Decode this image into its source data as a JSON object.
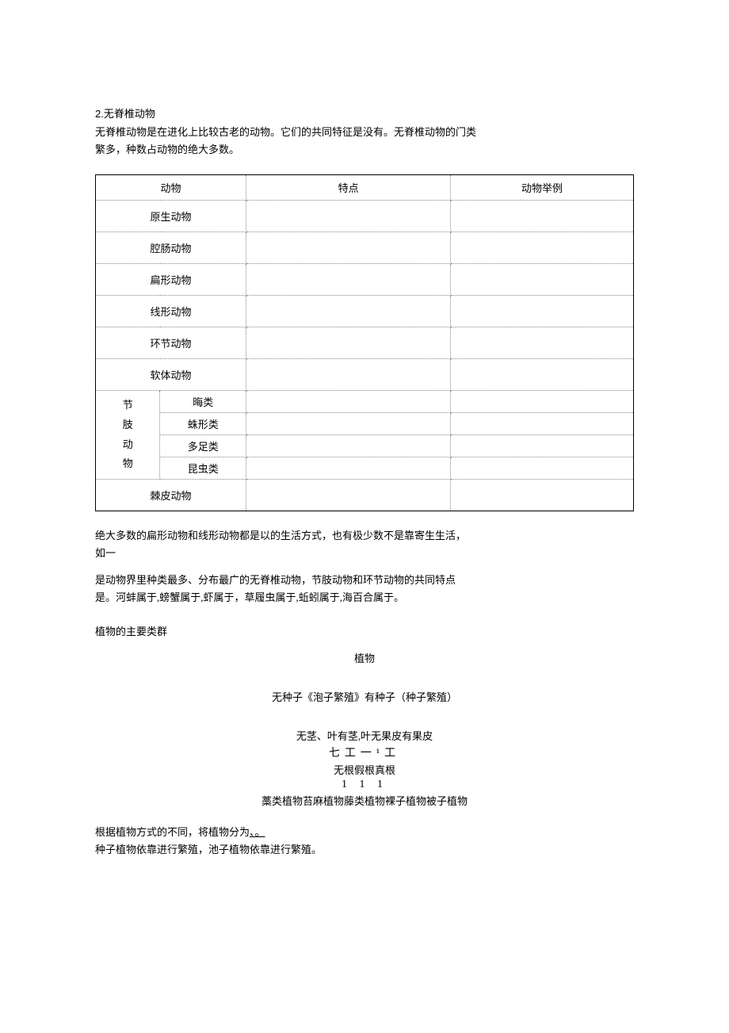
{
  "section_number": "2",
  "section_title": ".无脊椎动物",
  "intro_line1": "无脊椎动物是在进化上比较古老的动物。它们的共同特征是没有。无脊椎动物的门类",
  "intro_line2": "繁多，种数占动物的绝大多数。",
  "table": {
    "headers": [
      "动物",
      "特点",
      "动物举例"
    ],
    "simple_rows": [
      "原生动物",
      "腔肠动物",
      "扁形动物",
      "线形动物",
      "环节动物",
      "软体动物"
    ],
    "arthropod_label": "节肢动物",
    "arthropod_char1": "节",
    "arthropod_char2": "肢",
    "arthropod_char3": "动",
    "arthropod_char4": "物",
    "arthropod_subclasses": [
      "晦类",
      "蛛形类",
      "多足类",
      "昆虫类"
    ],
    "last_row": "棘皮动物"
  },
  "body_p1_l1": "绝大多数的扁形动物和线形动物都是以的生活方式，也有极少数不是靠寄生生活，",
  "body_p1_l2": "如一",
  "body_p2_l1": "是动物界里种类最多、分布最广的无脊椎动物，节肢动物和环节动物的共同特点",
  "body_p2_l2": "是。河蚌属于,螃蟹属于,虾属于，草履虫属于,蚯蚓属于,海百合属于。",
  "plant_section_title": "植物的主要类群",
  "plant_tree": {
    "root": "植物",
    "level2": "无种子《泡子繁殖》有种子（种子繁殖）",
    "level3a": "无茎、叶有茎,叶无果皮有果皮",
    "symbols1": "七工一¹工",
    "level3b": "无根假根真根",
    "symbols2": "1 1 1",
    "leaves": "藁类植物苔麻植物藤类植物裸子植物被子植物"
  },
  "footer_l1a": "根据植物方式的不同，将植物分为",
  "footer_l1b": "、。",
  "footer_l2": "种子植物依靠进行繁殖，池子植物依靠进行繁殖。"
}
